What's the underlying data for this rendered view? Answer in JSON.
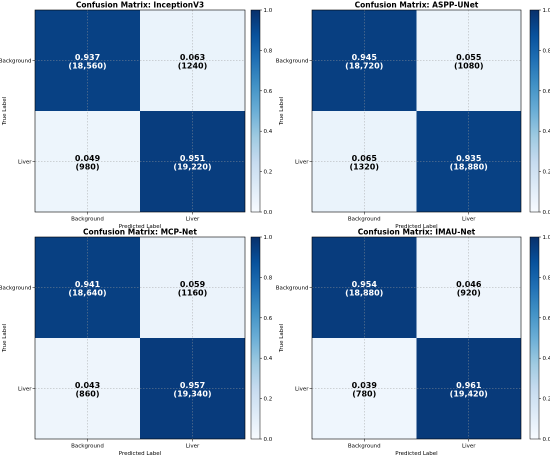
{
  "chart_data": [
    {
      "type": "heatmap",
      "title": "Confusion Matrix: InceptionV3",
      "xlabel": "Predicted Label",
      "ylabel": "True Label",
      "x_categories": [
        "Background",
        "Liver"
      ],
      "y_categories": [
        "Background",
        "Liver"
      ],
      "values": [
        [
          0.937,
          0.063
        ],
        [
          0.049,
          0.951
        ]
      ],
      "counts": [
        [
          "18,560",
          "1240"
        ],
        [
          "980",
          "19,220"
        ]
      ],
      "colorbar": {
        "range": [
          0.0,
          1.0
        ],
        "ticks": [
          "0.0",
          "0.2",
          "0.4",
          "0.6",
          "0.8",
          "1.0"
        ]
      }
    },
    {
      "type": "heatmap",
      "title": "Confusion Matrix: ASPP-UNet",
      "xlabel": "Predicted Label",
      "ylabel": "True Label",
      "x_categories": [
        "Background",
        "Liver"
      ],
      "y_categories": [
        "Background",
        "Liver"
      ],
      "values": [
        [
          0.945,
          0.055
        ],
        [
          0.065,
          0.935
        ]
      ],
      "counts": [
        [
          "18,720",
          "1080"
        ],
        [
          "1320",
          "18,880"
        ]
      ],
      "colorbar": {
        "range": [
          0.0,
          1.0
        ],
        "ticks": [
          "0.0",
          "0.2",
          "0.4",
          "0.6",
          "0.8",
          "1.0"
        ]
      }
    },
    {
      "type": "heatmap",
      "title": "Confusion Matrix: MCP-Net",
      "xlabel": "Predicted Label",
      "ylabel": "True Label",
      "x_categories": [
        "Background",
        "Liver"
      ],
      "y_categories": [
        "Background",
        "Liver"
      ],
      "values": [
        [
          0.941,
          0.059
        ],
        [
          0.043,
          0.957
        ]
      ],
      "counts": [
        [
          "18,640",
          "1160"
        ],
        [
          "860",
          "19,340"
        ]
      ],
      "colorbar": {
        "range": [
          0.0,
          1.0
        ],
        "ticks": [
          "0.0",
          "0.2",
          "0.4",
          "0.6",
          "0.8",
          "1.0"
        ]
      }
    },
    {
      "type": "heatmap",
      "title": "Confusion Matrix: IMAU-Net",
      "xlabel": "Predicted Label",
      "ylabel": "True Label",
      "x_categories": [
        "Background",
        "Liver"
      ],
      "y_categories": [
        "Background",
        "Liver"
      ],
      "values": [
        [
          0.954,
          0.046
        ],
        [
          0.039,
          0.961
        ]
      ],
      "counts": [
        [
          "18,880",
          "920"
        ],
        [
          "780",
          "19,420"
        ]
      ],
      "colorbar": {
        "range": [
          0.0,
          1.0
        ],
        "ticks": [
          "0.0",
          "0.2",
          "0.4",
          "0.6",
          "0.8",
          "1.0"
        ]
      }
    }
  ],
  "colors": {
    "low": "#f7fbff",
    "high": "#08306b",
    "scale": [
      "#f7fbff",
      "#deebf7",
      "#c6dbef",
      "#9ecae1",
      "#6baed6",
      "#4292c6",
      "#2171b5",
      "#08519c",
      "#08306b"
    ],
    "text_light": "#ffffff",
    "text_dark": "#000000"
  }
}
